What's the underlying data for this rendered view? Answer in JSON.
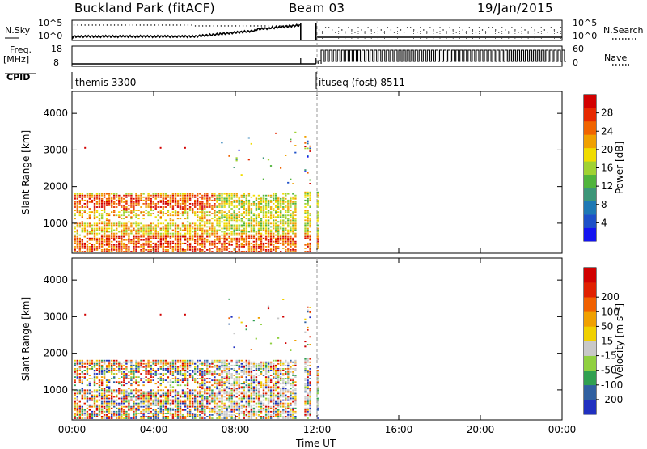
{
  "header": {
    "station": "Buckland Park (fitACF)",
    "beam": "Beam 03",
    "date": "19/Jan/2015"
  },
  "nsky_panel": {
    "left_label": "N.Sky",
    "left_ticks": [
      "10^5",
      "10^0"
    ],
    "right_label": "N.Search",
    "right_ticks": [
      "10^5",
      "10^0"
    ]
  },
  "freq_panel": {
    "left_label": "Freq.",
    "left_unit": "[MHz]",
    "left_ticks": [
      "18",
      "8"
    ],
    "right_label": "Nave",
    "right_ticks": [
      "60",
      "0"
    ]
  },
  "cpid_panel": {
    "label": "CPID",
    "segments": [
      "themis 3300",
      "ituseq (fost) 8511"
    ]
  },
  "colors": {
    "power": [
      "#1414f0",
      "#1e50c8",
      "#1e78b4",
      "#3c9678",
      "#50b43c",
      "#a0d232",
      "#f0dc00",
      "#f0a000",
      "#f06400",
      "#e62800",
      "#d20000"
    ],
    "velocity": [
      "#2030c0",
      "#3060a0",
      "#30a050",
      "#90d040",
      "#c8c8c8",
      "#f0d000",
      "#f0a000",
      "#f06000",
      "#e02000",
      "#d00000"
    ]
  },
  "chart_data": [
    {
      "type": "heatmap",
      "name": "power",
      "ylabel": "Slant Range [km]",
      "yticks": [
        "1000",
        "2000",
        "3000",
        "4000"
      ],
      "ylim": [
        180,
        4600
      ],
      "colorbar_label": "Power [dB]",
      "colorbar_ticks": [
        "4",
        "8",
        "12",
        "16",
        "20",
        "24",
        "28"
      ],
      "colorbar_range": [
        0,
        32
      ]
    },
    {
      "type": "heatmap",
      "name": "velocity",
      "ylabel": "Slant Range [km]",
      "yticks": [
        "1000",
        "2000",
        "3000",
        "4000"
      ],
      "ylim": [
        180,
        4600
      ],
      "colorbar_label": "Velocity [m s⁻¹]",
      "colorbar_ticks": [
        "-200",
        "-100",
        "-50",
        "-15",
        "15",
        "50",
        "100",
        "200"
      ],
      "xlabel": "Time UT",
      "xticks": [
        "00:00",
        "04:00",
        "08:00",
        "12:00",
        "16:00",
        "20:00",
        "00:00"
      ],
      "xlim_hours": [
        0,
        24
      ]
    }
  ]
}
